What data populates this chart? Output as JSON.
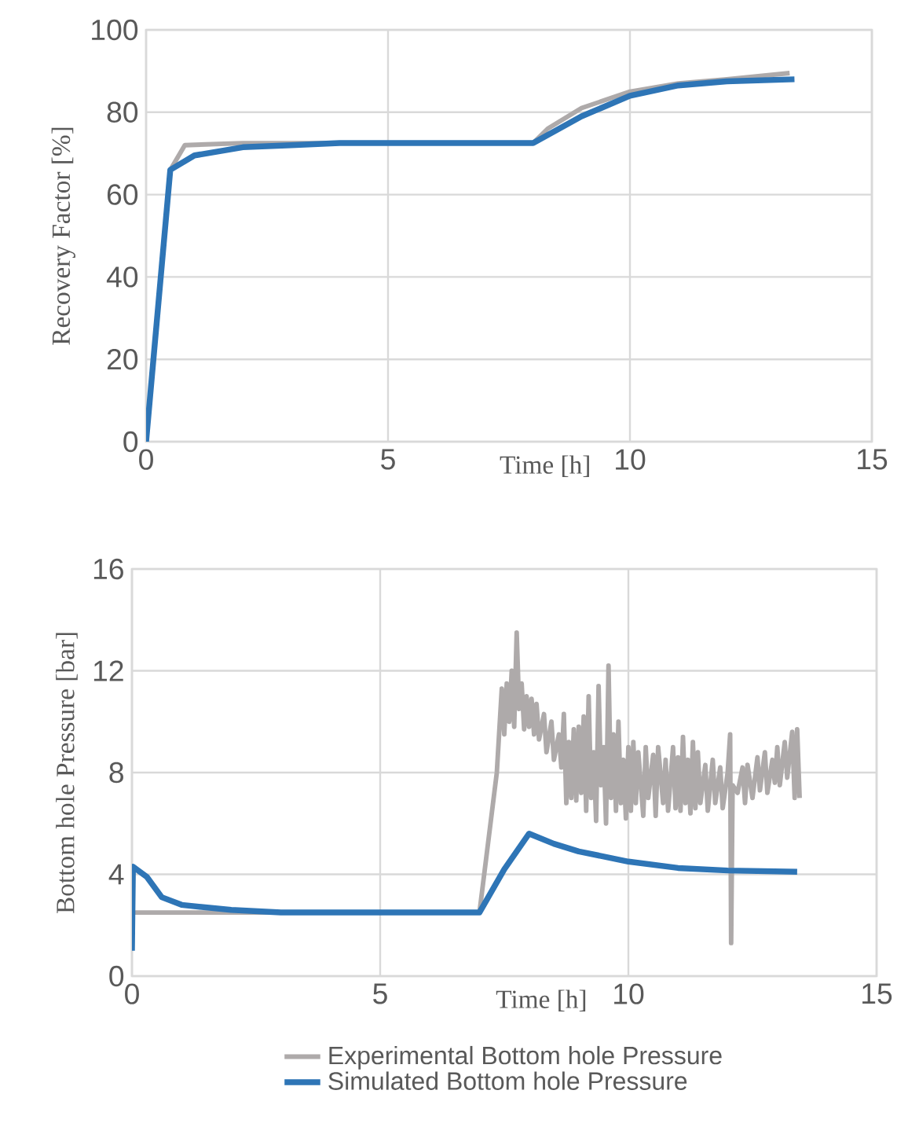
{
  "chart_data": [
    {
      "type": "line",
      "xlabel": "Time [h]",
      "ylabel": "Recovery Factor [%]",
      "xlim": [
        0,
        15
      ],
      "ylim": [
        0,
        100
      ],
      "xticks": [
        0,
        5,
        10,
        15
      ],
      "yticks": [
        0,
        20,
        40,
        60,
        80,
        100
      ],
      "grid": true,
      "series": [
        {
          "color": "#aeaaaa",
          "x": [
            0.5,
            0.8,
            2,
            4,
            8,
            8.3,
            9,
            10,
            11,
            12,
            13.3
          ],
          "values": [
            66,
            72,
            72.5,
            72.5,
            72.5,
            76,
            81,
            85,
            87,
            88,
            89.5
          ]
        },
        {
          "color": "#2e75b6",
          "x": [
            0,
            0.5,
            1,
            2,
            3,
            4,
            8,
            9,
            10,
            11,
            12,
            13.4
          ],
          "values": [
            0,
            66,
            69.5,
            71.5,
            72,
            72.5,
            72.5,
            79,
            84,
            86.5,
            87.5,
            88
          ]
        }
      ]
    },
    {
      "type": "line",
      "xlabel": "Time [h]",
      "ylabel": "Bottom hole Pressure [bar]",
      "xlim": [
        0,
        15
      ],
      "ylim": [
        0,
        16
      ],
      "xticks": [
        0,
        5,
        10,
        15
      ],
      "yticks": [
        0,
        4,
        8,
        12,
        16
      ],
      "grid": true,
      "legend": "bottom",
      "series": [
        {
          "name": "Experimental Bottom hole Pressure",
          "color": "#aeaaaa",
          "x": [
            0,
            7.0,
            7.35,
            7.45,
            7.5,
            7.55,
            7.6,
            7.65,
            7.7,
            7.75,
            7.8,
            7.85,
            7.9,
            7.95,
            8.0,
            8.05,
            8.1,
            8.15,
            8.2,
            8.3,
            8.35,
            8.45,
            8.5,
            8.6,
            8.65,
            8.7,
            8.75,
            8.8,
            8.85,
            8.9,
            8.95,
            9.0,
            9.05,
            9.1,
            9.15,
            9.2,
            9.25,
            9.3,
            9.35,
            9.4,
            9.45,
            9.5,
            9.55,
            9.6,
            9.65,
            9.7,
            9.75,
            9.8,
            9.85,
            9.9,
            9.95,
            10.0,
            10.05,
            10.1,
            10.15,
            10.2,
            10.3,
            10.35,
            10.4,
            10.5,
            10.55,
            10.6,
            10.7,
            10.75,
            10.8,
            10.9,
            10.95,
            11.0,
            11.05,
            11.1,
            11.15,
            11.2,
            11.25,
            11.3,
            11.35,
            11.4,
            11.45,
            11.55,
            11.6,
            11.7,
            11.75,
            11.85,
            11.9,
            12.0,
            12.05,
            12.07,
            12.1,
            12.2,
            12.3,
            12.35,
            12.4,
            12.5,
            12.6,
            12.65,
            12.75,
            12.8,
            12.9,
            12.95,
            13.0,
            13.05,
            13.15,
            13.2,
            13.3,
            13.35,
            13.4,
            13.45
          ],
          "values": [
            2.5,
            2.5,
            8,
            11.3,
            9.5,
            11.5,
            10.0,
            12.0,
            9.8,
            13.5,
            10.5,
            11.5,
            9.7,
            11.0,
            9.8,
            10.9,
            9.5,
            10.7,
            9.3,
            10.3,
            8.8,
            10.0,
            8.5,
            9.5,
            8.2,
            10.3,
            6.8,
            9.2,
            7.0,
            9.7,
            6.9,
            9.8,
            7.2,
            10.2,
            6.5,
            11.0,
            7.0,
            8.8,
            6.1,
            11.4,
            7.5,
            9.0,
            6.0,
            12.2,
            7.0,
            9.5,
            6.5,
            10.0,
            6.8,
            8.5,
            6.2,
            9.0,
            6.5,
            9.2,
            6.8,
            8.8,
            6.3,
            9.0,
            7.0,
            8.7,
            6.3,
            9.0,
            6.8,
            8.5,
            6.5,
            9.0,
            6.6,
            8.6,
            6.5,
            9.4,
            6.8,
            8.5,
            6.4,
            9.2,
            6.6,
            8.8,
            6.8,
            8.3,
            6.5,
            8.5,
            6.8,
            8.2,
            6.6,
            8.0,
            9.5,
            1.3,
            7.5,
            7.2,
            8.2,
            6.8,
            8.3,
            7.0,
            8.6,
            7.3,
            8.8,
            7.2,
            8.5,
            7.6,
            9.0,
            7.5,
            9.2,
            7.8,
            9.6,
            7.0,
            9.7,
            7.0
          ]
        },
        {
          "name": "Simulated Bottom hole Pressure",
          "color": "#2e75b6",
          "x": [
            0,
            0.02,
            0.3,
            0.6,
            1,
            2,
            3,
            7,
            7.5,
            8,
            8.5,
            9,
            10,
            11,
            12,
            13.4
          ],
          "values": [
            1.0,
            4.3,
            3.9,
            3.1,
            2.8,
            2.6,
            2.5,
            2.5,
            4.2,
            5.6,
            5.2,
            4.9,
            4.5,
            4.25,
            4.15,
            4.1
          ]
        }
      ]
    }
  ]
}
